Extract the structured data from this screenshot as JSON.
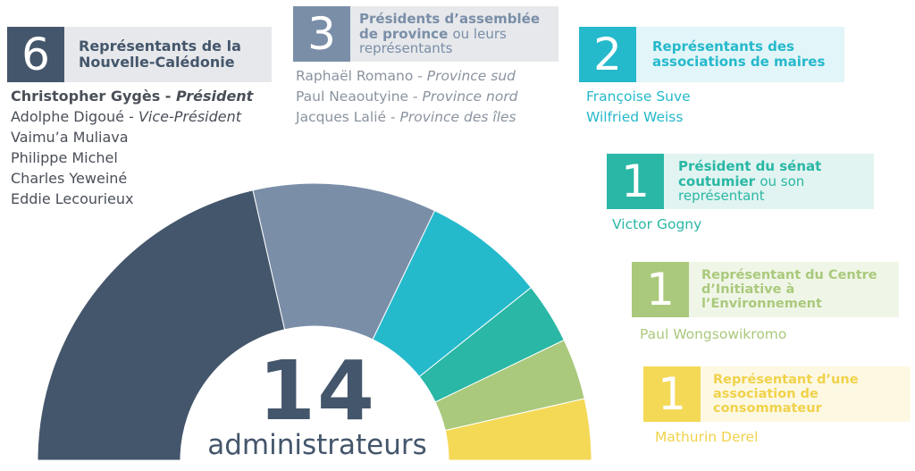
{
  "colors": {
    "nc": "#44566b",
    "province": "#7a8ea8",
    "mayors": "#25b9cc",
    "senate": "#2ab7a5",
    "cie": "#aac97c",
    "consumers": "#f4d957"
  },
  "groups": [
    {
      "count": "6",
      "label_bold": "Représentants de la Nouvelle-Calédonie",
      "label_light": "",
      "members": [
        {
          "name": "Christopher Gygès",
          "role": "Président"
        },
        {
          "name": "Adolphe Digoué",
          "role": "Vice-Président"
        },
        {
          "name": "Vaimu’a Muliava",
          "role": ""
        },
        {
          "name": "Philippe Michel",
          "role": ""
        },
        {
          "name": "Charles Yeweiné",
          "role": ""
        },
        {
          "name": "Eddie Lecourieux",
          "role": ""
        }
      ]
    },
    {
      "count": "3",
      "label_bold": "Présidents d’assemblée de province",
      "label_light": "ou leurs représentants",
      "members": [
        {
          "name": "Raphaël Romano",
          "role": "Province sud"
        },
        {
          "name": "Paul Neaoutyine",
          "role": "Province nord"
        },
        {
          "name": "Jacques Lalié",
          "role": "Province des îles"
        }
      ]
    },
    {
      "count": "2",
      "label_bold": "Représentants des associations de maires",
      "label_light": "",
      "members": [
        {
          "name": "Françoise Suve",
          "role": ""
        },
        {
          "name": "Wilfried Weiss",
          "role": ""
        }
      ]
    },
    {
      "count": "1",
      "label_bold": "Président du sénat coutumier",
      "label_light": "ou son représentant",
      "members": [
        {
          "name": "Victor Gogny",
          "role": ""
        }
      ]
    },
    {
      "count": "1",
      "label_bold": "Représentant du Centre d’Initiative à l’Environnement",
      "label_light": "",
      "members": [
        {
          "name": "Paul Wongsowikromo",
          "role": ""
        }
      ]
    },
    {
      "count": "1",
      "label_bold": "Représentant d’une association de consommateur",
      "label_light": "",
      "members": [
        {
          "name": "Mathurin Derel",
          "role": ""
        }
      ]
    }
  ],
  "chart_data": {
    "type": "pie",
    "subtype": "half-donut",
    "total": "14",
    "total_label": "administrateurs",
    "categories": [
      "Représentants de la Nouvelle-Calédonie",
      "Présidents d’assemblée de province",
      "Représentants des associations de maires",
      "Président du sénat coutumier",
      "Représentant du Centre d’Initiative à l’Environnement",
      "Représentant d’une association de consommateur"
    ],
    "values": [
      6,
      3,
      2,
      1,
      1,
      1
    ],
    "colors": [
      "#44566b",
      "#7a8ea8",
      "#25b9cc",
      "#2ab7a5",
      "#aac97c",
      "#f4d957"
    ]
  }
}
